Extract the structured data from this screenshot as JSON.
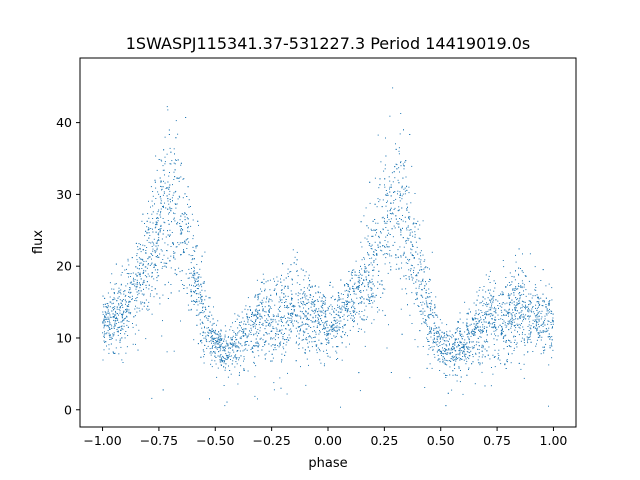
{
  "chart_data": {
    "type": "scatter",
    "title": "1SWASPJ115341.37-531227.3 Period 14419019.0s",
    "xlabel": "phase",
    "ylabel": "flux",
    "xlim": [
      -1.1,
      1.1
    ],
    "ylim": [
      -2.4,
      49.0
    ],
    "x_ticks": [
      {
        "value": -1.0,
        "label": "−1.00"
      },
      {
        "value": -0.75,
        "label": "−0.75"
      },
      {
        "value": -0.5,
        "label": "−0.50"
      },
      {
        "value": -0.25,
        "label": "−0.25"
      },
      {
        "value": 0.0,
        "label": "0.00"
      },
      {
        "value": 0.25,
        "label": "0.25"
      },
      {
        "value": 0.5,
        "label": "0.50"
      },
      {
        "value": 0.75,
        "label": "0.75"
      },
      {
        "value": 1.0,
        "label": "1.00"
      }
    ],
    "y_ticks": [
      {
        "value": 0,
        "label": "0"
      },
      {
        "value": 10,
        "label": "10"
      },
      {
        "value": 20,
        "label": "20"
      },
      {
        "value": 30,
        "label": "30"
      },
      {
        "value": 40,
        "label": "40"
      }
    ],
    "grid": false,
    "legend": "none",
    "marker_color": "#1f77b4",
    "repeat_period": 1.0,
    "phase_profile": [
      {
        "phase": 0.0,
        "median": 12.0,
        "spread": 3.0
      },
      {
        "phase": 0.05,
        "median": 13.0,
        "spread": 3.0
      },
      {
        "phase": 0.1,
        "median": 14.5,
        "spread": 3.5
      },
      {
        "phase": 0.15,
        "median": 17.0,
        "spread": 4.0
      },
      {
        "phase": 0.2,
        "median": 20.0,
        "spread": 5.0
      },
      {
        "phase": 0.25,
        "median": 26.0,
        "spread": 7.0
      },
      {
        "phase": 0.3,
        "median": 29.0,
        "spread": 8.0
      },
      {
        "phase": 0.35,
        "median": 26.0,
        "spread": 7.0
      },
      {
        "phase": 0.38,
        "median": 22.0,
        "spread": 6.0
      },
      {
        "phase": 0.42,
        "median": 17.0,
        "spread": 5.0
      },
      {
        "phase": 0.45,
        "median": 13.0,
        "spread": 4.0
      },
      {
        "phase": 0.5,
        "median": 9.0,
        "spread": 2.0
      },
      {
        "phase": 0.55,
        "median": 8.0,
        "spread": 2.0
      },
      {
        "phase": 0.6,
        "median": 9.0,
        "spread": 3.0
      },
      {
        "phase": 0.65,
        "median": 11.0,
        "spread": 3.0
      },
      {
        "phase": 0.7,
        "median": 12.5,
        "spread": 4.0
      },
      {
        "phase": 0.75,
        "median": 12.0,
        "spread": 3.5
      },
      {
        "phase": 0.8,
        "median": 13.0,
        "spread": 4.0
      },
      {
        "phase": 0.85,
        "median": 14.0,
        "spread": 4.5
      },
      {
        "phase": 0.9,
        "median": 13.5,
        "spread": 4.0
      },
      {
        "phase": 0.95,
        "median": 12.5,
        "spread": 3.5
      },
      {
        "phase": 1.0,
        "median": 12.0,
        "spread": 3.0
      }
    ]
  }
}
